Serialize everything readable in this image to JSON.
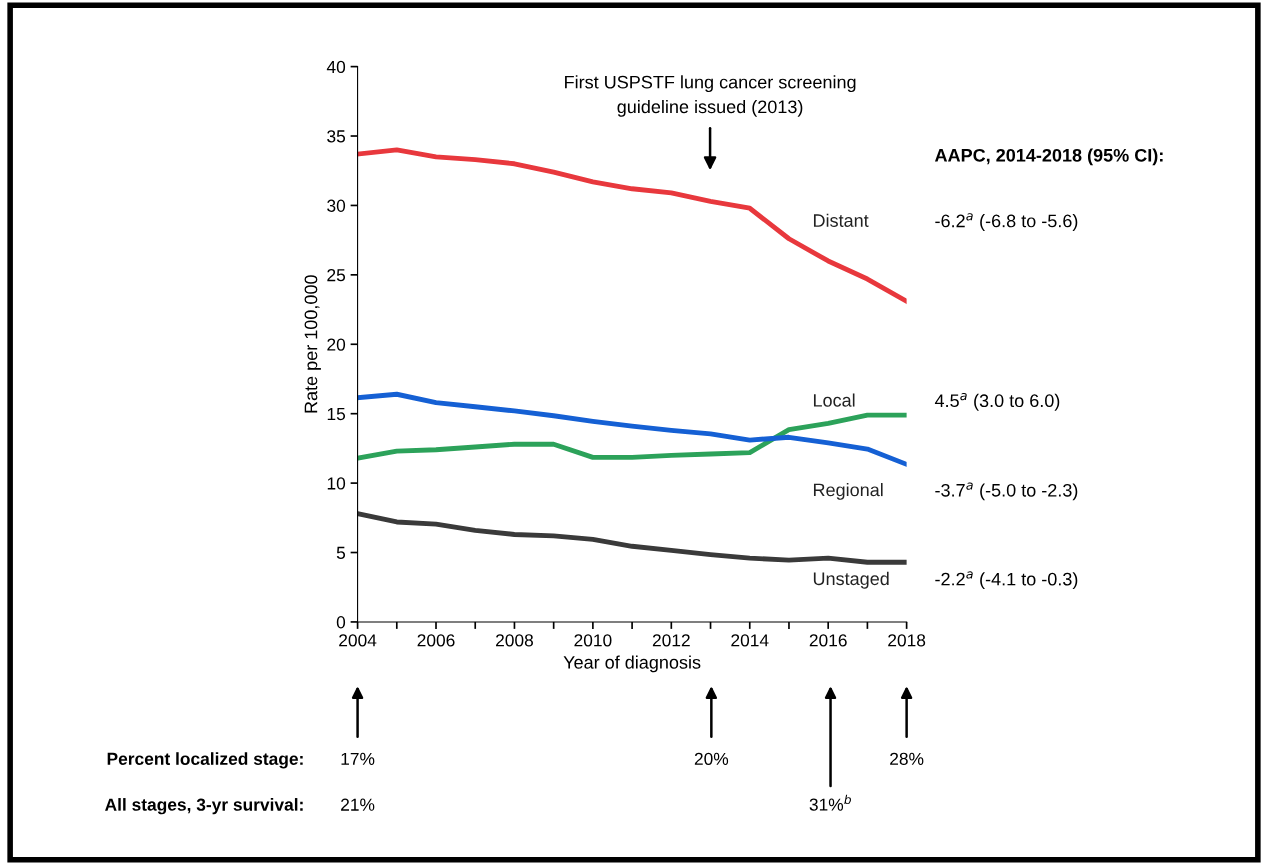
{
  "chart_data": {
    "type": "line",
    "xlabel": "Year of diagnosis",
    "ylabel": "Rate per 100,000",
    "x": [
      2004,
      2005,
      2006,
      2007,
      2008,
      2009,
      2010,
      2011,
      2012,
      2013,
      2014,
      2015,
      2016,
      2017,
      2018
    ],
    "series": [
      {
        "name": "Distant",
        "color": "#e8383d",
        "values": [
          33.7,
          34.0,
          33.5,
          33.3,
          33.0,
          32.4,
          31.7,
          31.2,
          30.9,
          30.3,
          29.8,
          27.6,
          26.0,
          24.7,
          23.1
        ]
      },
      {
        "name": "Local",
        "color": "#2ca25a",
        "values": [
          11.8,
          12.3,
          12.4,
          12.6,
          12.8,
          12.8,
          11.85,
          11.85,
          12.0,
          12.1,
          12.2,
          13.85,
          14.3,
          14.9,
          14.9
        ]
      },
      {
        "name": "Regional",
        "color": "#1560d4",
        "values": [
          16.15,
          16.4,
          15.8,
          15.5,
          15.2,
          14.85,
          14.45,
          14.1,
          13.8,
          13.55,
          13.1,
          13.3,
          12.9,
          12.45,
          11.35
        ]
      },
      {
        "name": "Unstaged",
        "color": "#3a3a3a",
        "values": [
          7.8,
          7.2,
          7.05,
          6.6,
          6.3,
          6.2,
          5.95,
          5.45,
          5.15,
          4.85,
          4.6,
          4.45,
          4.6,
          4.3,
          4.3
        ]
      }
    ],
    "xlim": [
      2004,
      2018
    ],
    "xticks": [
      2004,
      {
        "value": 2005,
        "label": null
      },
      2006,
      {
        "value": 2007,
        "label": null
      },
      2008,
      {
        "value": 2009,
        "label": null
      },
      2010,
      {
        "value": 2011,
        "label": null
      },
      2012,
      {
        "value": 2013,
        "label": null
      },
      2014,
      {
        "value": 2015,
        "label": null
      },
      2016,
      {
        "value": 2017,
        "label": null
      },
      2018
    ],
    "ylim": [
      0,
      40
    ],
    "yticks": [
      0,
      5,
      10,
      15,
      20,
      25,
      30,
      35,
      40
    ],
    "grid": false,
    "legend": false,
    "marker": "none",
    "line_style": "solid",
    "annotations": [
      "First USPSTF lung cancer screening\nguideline issued (2013)",
      "AAPC, 2014-2018 (95% CI):",
      "-6.2$^{a}$ (-6.8 to -5.6)",
      "4.5$^{a}$ (3.0 to 6.0)",
      "-3.7$^{a}$ (-5.0 to -2.3)",
      "-2.2$^{a}$ (-4.1 to -0.3)",
      "Percent localized stage:",
      "All stages, 3-yr survival:",
      "17%",
      "20%",
      "28%",
      "21%",
      "31%$^{b}$"
    ]
  }
}
